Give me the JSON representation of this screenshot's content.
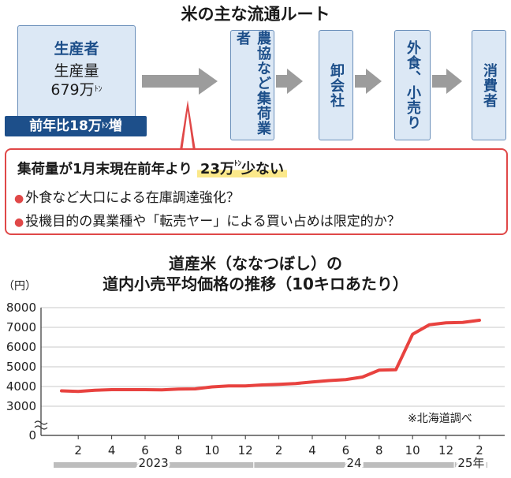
{
  "flow": {
    "title": "米の主な流通ルート",
    "producer": {
      "label": "生産者",
      "line1": "生産量",
      "amount": "679万",
      "unit": "ﾄﾝ"
    },
    "yoy": {
      "text": "前年比18万",
      "unit": "ﾄﾝ",
      "suffix": "増"
    },
    "stages": [
      "農協など集荷業者",
      "卸会社",
      "外食、小売り",
      "消費者"
    ]
  },
  "callout": {
    "headline": "集荷量が1月末現在前年より",
    "highlight": "23万",
    "highlight_unit": "ﾄﾝ",
    "highlight_suffix": "少ない",
    "bullets": [
      "外食など大口による在庫調達強化？",
      "投機目的の異業種や「転売ヤー」による買い占めは限定的か？"
    ]
  },
  "chart_data": {
    "type": "line",
    "title": "道産米（ななつぼし）の",
    "subtitle": "道内小売平均価格の推移（10キロあたり）",
    "ylabel": "（円）",
    "ylim": [
      0,
      8000
    ],
    "yticks": [
      "0",
      "3000",
      "4000",
      "5000",
      "6000",
      "7000",
      "8000"
    ],
    "axis_break": true,
    "grid": true,
    "xtick_labels": [
      "2",
      "4",
      "6",
      "8",
      "10",
      "12",
      "2",
      "4",
      "6",
      "8",
      "10",
      "12",
      "2"
    ],
    "year_labels": [
      "2023",
      "24",
      "25年"
    ],
    "x": [
      "2023-01",
      "2023-02",
      "2023-03",
      "2023-04",
      "2023-05",
      "2023-06",
      "2023-07",
      "2023-08",
      "2023-09",
      "2023-10",
      "2023-11",
      "2023-12",
      "2024-01",
      "2024-02",
      "2024-03",
      "2024-04",
      "2024-05",
      "2024-06",
      "2024-07",
      "2024-08",
      "2024-09",
      "2024-10",
      "2024-11",
      "2024-12",
      "2025-01",
      "2025-02"
    ],
    "series": [
      {
        "values": [
          3780,
          3750,
          3810,
          3840,
          3840,
          3840,
          3830,
          3870,
          3880,
          3980,
          4030,
          4030,
          4080,
          4110,
          4150,
          4230,
          4300,
          4350,
          4480,
          4830,
          4850,
          6650,
          7130,
          7230,
          7250,
          7360
        ],
        "color": "#e8423f"
      }
    ],
    "source": "※北海道調べ"
  }
}
